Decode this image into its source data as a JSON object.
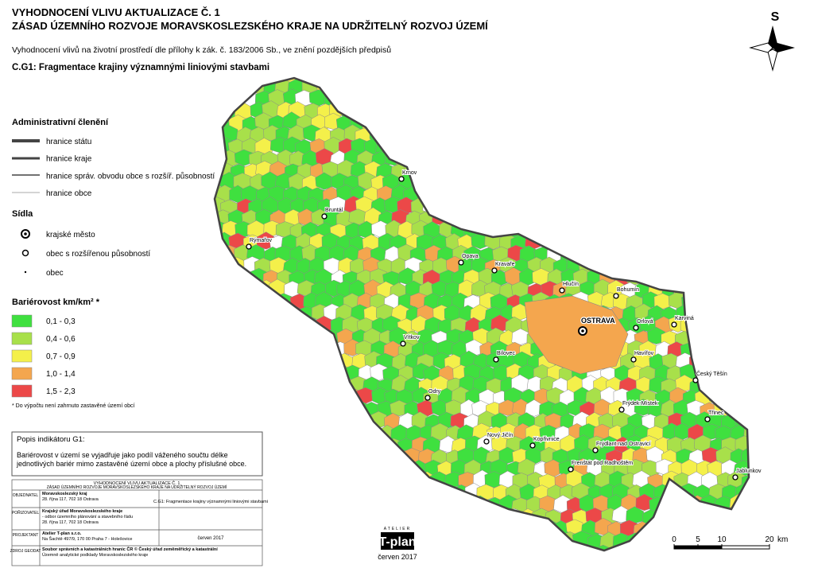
{
  "header": {
    "title_line1": "VYHODNOCENÍ VLIVU AKTUALIZACE Č. 1",
    "title_line2": "ZÁSAD ÚZEMNÍHO ROZVOJE MORAVSKOSLEZSKÉHO KRAJE NA UDRŽITELNÝ ROZVOJ ÚZEMÍ",
    "subtitle": "Vyhodnocení vlivů na životní prostředí dle přílohy k zák. č. 183/2006 Sb., ve znění pozdějších předpisů",
    "map_title": "C.G1: Fragmentace krajiny významnými liniovými stavbami"
  },
  "compass": "S",
  "legend": {
    "admin_title": "Administrativní členění",
    "admin": [
      "hranice státu",
      "hranice kraje",
      "hranice správ. obvodu obce s rozšíř. působností",
      "hranice obce"
    ],
    "settlements_title": "Sídla",
    "settlements": [
      "krajské město",
      "obec s rozšířenou působností",
      "obec"
    ],
    "classes_title": "Bariérovost km/km² *",
    "classes": [
      {
        "label": "0,1 - 0,3",
        "color": "#3fe03f"
      },
      {
        "label": "0,4 - 0,6",
        "color": "#a8e04a"
      },
      {
        "label": "0,7 - 0,9",
        "color": "#f4f04a"
      },
      {
        "label": "1,0 - 1,4",
        "color": "#f4a64e"
      },
      {
        "label": "1,5 - 2,3",
        "color": "#ec4848"
      }
    ],
    "note": "* Do výpočtu není zahrnuto zastavěné území obcí"
  },
  "indicator": {
    "title": "Popis indikátoru G1:",
    "text_line1": "Bariérovost v území se vyjadřuje jako podíl váženého součtu délke",
    "text_line2": "jednotlivých bariér mimo zastavěné území obce a plochy příslušné obce."
  },
  "table": {
    "header_line1": "VYHODNOCENÍ VLIVU AKTUALIZACE Č. 1",
    "header_line2": "ZÁSAD ÚZEMNÍHO ROZVOJE MORAVSKOSLEZSKÉHO KRAJE NA UDRŽITELNÝ ROZVOJ ÚZEMÍ",
    "rows": [
      [
        "OBJEDNATEL",
        "Moravskoslezský kraj",
        "28. října 117, 702 18 Ostrava"
      ],
      [
        "POŘIZOVATEL",
        "Krajský úřad Moravskoslezského kraje",
        "- odbor územního plánování a stavebního řádu",
        "28. října 117, 702 18 Ostrava"
      ],
      [
        "PROJEKTANT",
        "Atelier T-plan s.r.o.",
        "Na Šachtě 497/9, 170 00 Praha 7 - Holešovice"
      ],
      [
        "ZDROJ GEODAT",
        "Soubor správních a katastrálních hranic ČR © Český úřad zeměměřický a katastrální",
        "Územně analytické podklady Moravskoslezského kraje"
      ]
    ],
    "map_name": "C.G1: Fragmentace krajiny významnými liniovými stavbami",
    "date": "červen 2017"
  },
  "towns": {
    "regional": [
      "OSTRAVA"
    ],
    "extended": [
      "Krnov",
      "Bruntál",
      "Rýmařov",
      "Opava",
      "Kravaře",
      "Hlučín",
      "Bohumín",
      "Orlová",
      "Karviná",
      "Havířov",
      "Vítkov",
      "Bílovec",
      "Český Těšín",
      "Odry",
      "Frýdek-Místek",
      "Třinec",
      "Nový Jičín",
      "Kopřivnice",
      "Frýdlant nad Ostravicí",
      "Frenštát pod Radhoštěm",
      "Jablunkov"
    ]
  },
  "scale_bar": {
    "ticks": [
      0,
      5,
      10,
      20
    ],
    "unit": "km"
  },
  "logo": {
    "atelier": "ATELIER",
    "name": "T-plan",
    "date": "červen 2017"
  }
}
